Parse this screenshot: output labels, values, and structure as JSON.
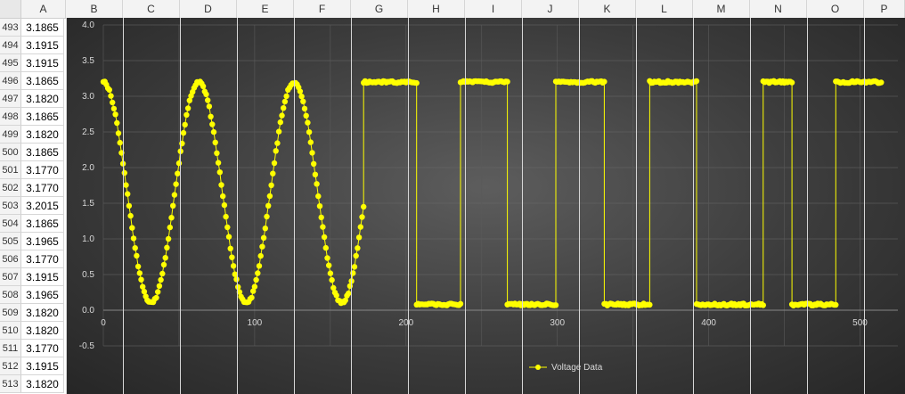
{
  "columns": [
    "A",
    "B",
    "C",
    "D",
    "E",
    "F",
    "G",
    "H",
    "I",
    "J",
    "K",
    "L",
    "M",
    "N",
    "O",
    "P"
  ],
  "rows": [
    {
      "num": "493",
      "value": "3.1865"
    },
    {
      "num": "494",
      "value": "3.1915"
    },
    {
      "num": "495",
      "value": "3.1915"
    },
    {
      "num": "496",
      "value": "3.1865"
    },
    {
      "num": "497",
      "value": "3.1820"
    },
    {
      "num": "498",
      "value": "3.1865"
    },
    {
      "num": "499",
      "value": "3.1820"
    },
    {
      "num": "500",
      "value": "3.1865"
    },
    {
      "num": "501",
      "value": "3.1770"
    },
    {
      "num": "502",
      "value": "3.1770"
    },
    {
      "num": "503",
      "value": "3.2015"
    },
    {
      "num": "504",
      "value": "3.1865"
    },
    {
      "num": "505",
      "value": "3.1965"
    },
    {
      "num": "506",
      "value": "3.1770"
    },
    {
      "num": "507",
      "value": "3.1915"
    },
    {
      "num": "508",
      "value": "3.1965"
    },
    {
      "num": "509",
      "value": "3.1820"
    },
    {
      "num": "510",
      "value": "3.1820"
    },
    {
      "num": "511",
      "value": "3.1770"
    },
    {
      "num": "512",
      "value": "3.1915"
    },
    {
      "num": "513",
      "value": "3.1820"
    }
  ],
  "chart_data": {
    "type": "scatter",
    "title": "",
    "xlabel": "",
    "ylabel": "",
    "xlim": [
      0,
      525
    ],
    "ylim": [
      -0.5,
      4.0
    ],
    "x_ticks": [
      "0",
      "100",
      "200",
      "300",
      "400",
      "500"
    ],
    "y_ticks": [
      "-0.5",
      "0.0",
      "0.5",
      "1.0",
      "1.5",
      "2.0",
      "2.5",
      "3.0",
      "3.5",
      "4.0"
    ],
    "grid": true,
    "legend_position": "bottom",
    "series_color": "#ffff00",
    "series": [
      {
        "name": "Voltage Data",
        "sine_segment": {
          "x_start": 0,
          "x_end": 172,
          "period": 63,
          "min": 0.1,
          "max": 3.2,
          "start_phase_peak": true,
          "final_value": 1.45
        },
        "square_segments": [
          {
            "x_start": 172,
            "x_end": 207,
            "level": 3.2
          },
          {
            "x_start": 207,
            "x_end": 236,
            "level": 0.08
          },
          {
            "x_start": 236,
            "x_end": 267,
            "level": 3.2
          },
          {
            "x_start": 267,
            "x_end": 299,
            "level": 0.08
          },
          {
            "x_start": 299,
            "x_end": 331,
            "level": 3.2
          },
          {
            "x_start": 331,
            "x_end": 361,
            "level": 0.08
          },
          {
            "x_start": 361,
            "x_end": 392,
            "level": 3.2
          },
          {
            "x_start": 392,
            "x_end": 436,
            "level": 0.08
          },
          {
            "x_start": 436,
            "x_end": 455,
            "level": 3.2
          },
          {
            "x_start": 455,
            "x_end": 484,
            "level": 0.08
          },
          {
            "x_start": 484,
            "x_end": 514,
            "level": 3.2
          }
        ]
      }
    ]
  }
}
